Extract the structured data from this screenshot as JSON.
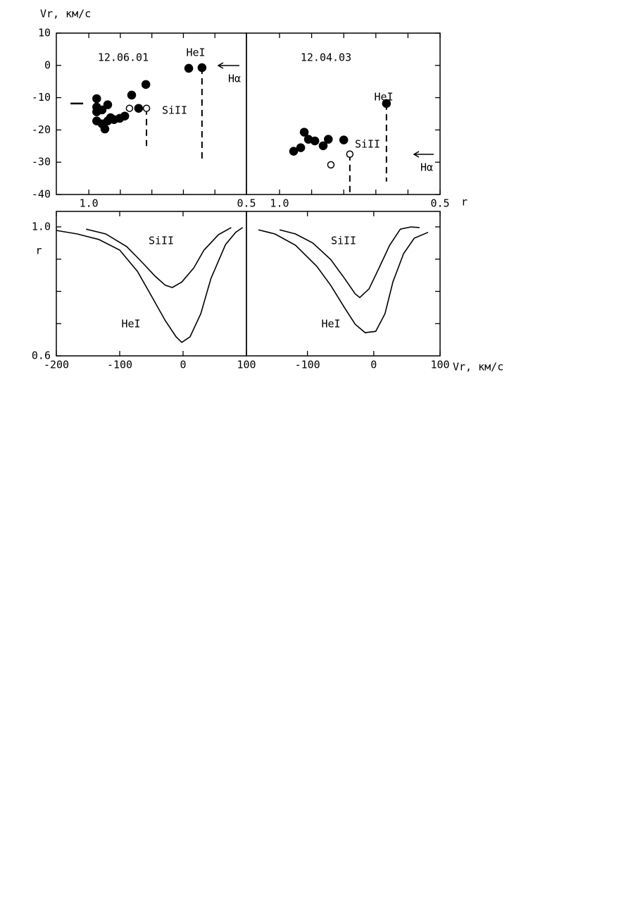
{
  "chart_data": [
    {
      "type": "scatter",
      "ylabel": "Vr, км/с",
      "xlim": [
        1.103,
        0.5
      ],
      "xticks": [
        {
          "value": 1.0,
          "label": "1.0"
        },
        {
          "value": 0.5,
          "label": "0.5"
        }
      ],
      "xminorticks": [
        0.9,
        0.8,
        0.7,
        0.6
      ],
      "ylim": [
        -40,
        10
      ],
      "yticks": [
        10,
        0,
        -10,
        -20,
        -30,
        -40
      ],
      "series": [
        {
          "marker": "filled",
          "color": "#000000",
          "x": [
            0.975,
            0.975,
            0.975,
            0.975,
            0.958,
            0.958,
            0.949,
            0.94,
            0.94,
            0.931,
            0.92,
            0.902,
            0.886,
            0.864,
            0.842,
            0.819,
            0.683,
            0.641
          ],
          "values": [
            -10.3,
            -12.9,
            -14.4,
            -17.2,
            -18.1,
            -13.8,
            -19.7,
            -12.2,
            -17.2,
            -16.2,
            -16.8,
            -16.4,
            -15.7,
            -9.2,
            -13.3,
            -5.9,
            -0.9,
            -0.7
          ]
        },
        {
          "marker": "open",
          "color": "#000000",
          "x": [
            0.871,
            0.817
          ],
          "values": [
            -13.3,
            -13.3
          ]
        }
      ],
      "dashed_lines": [
        {
          "x": 0.817,
          "y": [
            -13.3,
            -25
          ]
        },
        {
          "x": 0.641,
          "y": [
            -0.7,
            -30
          ]
        }
      ],
      "level_marks": [
        {
          "x": [
            1.058,
            1.018
          ],
          "y": -11.8
        }
      ],
      "annotations": [
        "12.06.01",
        "HeI",
        "SiII",
        "Hα"
      ]
    },
    {
      "type": "scatter",
      "xlabel": "r",
      "xlim": [
        1.103,
        0.5
      ],
      "xticks": [
        {
          "value": 1.0,
          "label": "1.0"
        },
        {
          "value": 0.5,
          "label": "0.5"
        }
      ],
      "xminorticks": [
        0.9,
        0.8,
        0.7,
        0.6
      ],
      "ylim": [
        -40,
        10
      ],
      "yminorticks": [
        10,
        0,
        -10,
        -20,
        -30,
        -40
      ],
      "series": [
        {
          "marker": "filled",
          "color": "#000000",
          "x": [
            0.956,
            0.934,
            0.923,
            0.91,
            0.89,
            0.864,
            0.848,
            0.8,
            0.667
          ],
          "values": [
            -26.6,
            -25.5,
            -20.7,
            -22.9,
            -23.4,
            -24.9,
            -22.9,
            -23.1,
            -11.8
          ]
        },
        {
          "marker": "open",
          "color": "#000000",
          "x": [
            0.84,
            0.781
          ],
          "values": [
            -30.8,
            -27.5
          ]
        }
      ],
      "dashed_lines": [
        {
          "x": 0.781,
          "y": [
            -27.5,
            -40
          ]
        },
        {
          "x": 0.667,
          "y": [
            -11.8,
            -36
          ]
        }
      ],
      "annotations": [
        "12.04.03",
        "HeI",
        "SiII",
        "Hα"
      ]
    },
    {
      "type": "line",
      "ylabel": "r",
      "xlim": [
        -200,
        100
      ],
      "xticks": [
        -200,
        -100,
        0,
        100
      ],
      "ylim": [
        0.6,
        1.048
      ],
      "yticks": [
        {
          "value": 1.0,
          "label": "1.0"
        },
        0.6
      ],
      "yminorticks": [
        0.9,
        0.8,
        0.7
      ],
      "series": [
        {
          "name": "SiII",
          "color": "#000000",
          "x": [
            -153,
            -122,
            -89,
            -67,
            -44,
            -28,
            -17,
            -2,
            17,
            33,
            56,
            76
          ],
          "values": [
            0.993,
            0.978,
            0.939,
            0.895,
            0.847,
            0.819,
            0.812,
            0.829,
            0.873,
            0.928,
            0.976,
            0.998
          ]
        },
        {
          "name": "HeI",
          "color": "#000000",
          "x": [
            -200,
            -167,
            -133,
            -100,
            -72,
            -50,
            -28,
            -11,
            -2,
            11,
            28,
            44,
            67,
            83,
            94
          ],
          "values": [
            0.989,
            0.978,
            0.961,
            0.928,
            0.862,
            0.786,
            0.709,
            0.659,
            0.642,
            0.659,
            0.731,
            0.84,
            0.945,
            0.983,
            0.998
          ]
        }
      ]
    },
    {
      "type": "line",
      "xlabel": "Vr, км/с",
      "xlim": [
        -192,
        100
      ],
      "xticks": [
        -100,
        0,
        100
      ],
      "ylim": [
        0.6,
        1.048
      ],
      "yminorticks": [
        1.0,
        0.9,
        0.8,
        0.7
      ],
      "series": [
        {
          "name": "SiII",
          "color": "#000000",
          "x": [
            -142,
            -118,
            -92,
            -65,
            -44,
            -28,
            -21,
            -7,
            8,
            24,
            40,
            56,
            69
          ],
          "values": [
            0.991,
            0.978,
            0.95,
            0.899,
            0.84,
            0.792,
            0.781,
            0.808,
            0.873,
            0.943,
            0.993,
            1.0,
            0.998
          ]
        },
        {
          "name": "HeI",
          "color": "#000000",
          "x": [
            -174,
            -149,
            -118,
            -86,
            -65,
            -44,
            -28,
            -13,
            3,
            17,
            29,
            45,
            61,
            82
          ],
          "values": [
            0.991,
            0.978,
            0.943,
            0.878,
            0.819,
            0.749,
            0.698,
            0.672,
            0.676,
            0.731,
            0.83,
            0.917,
            0.965,
            0.983
          ]
        }
      ]
    }
  ]
}
